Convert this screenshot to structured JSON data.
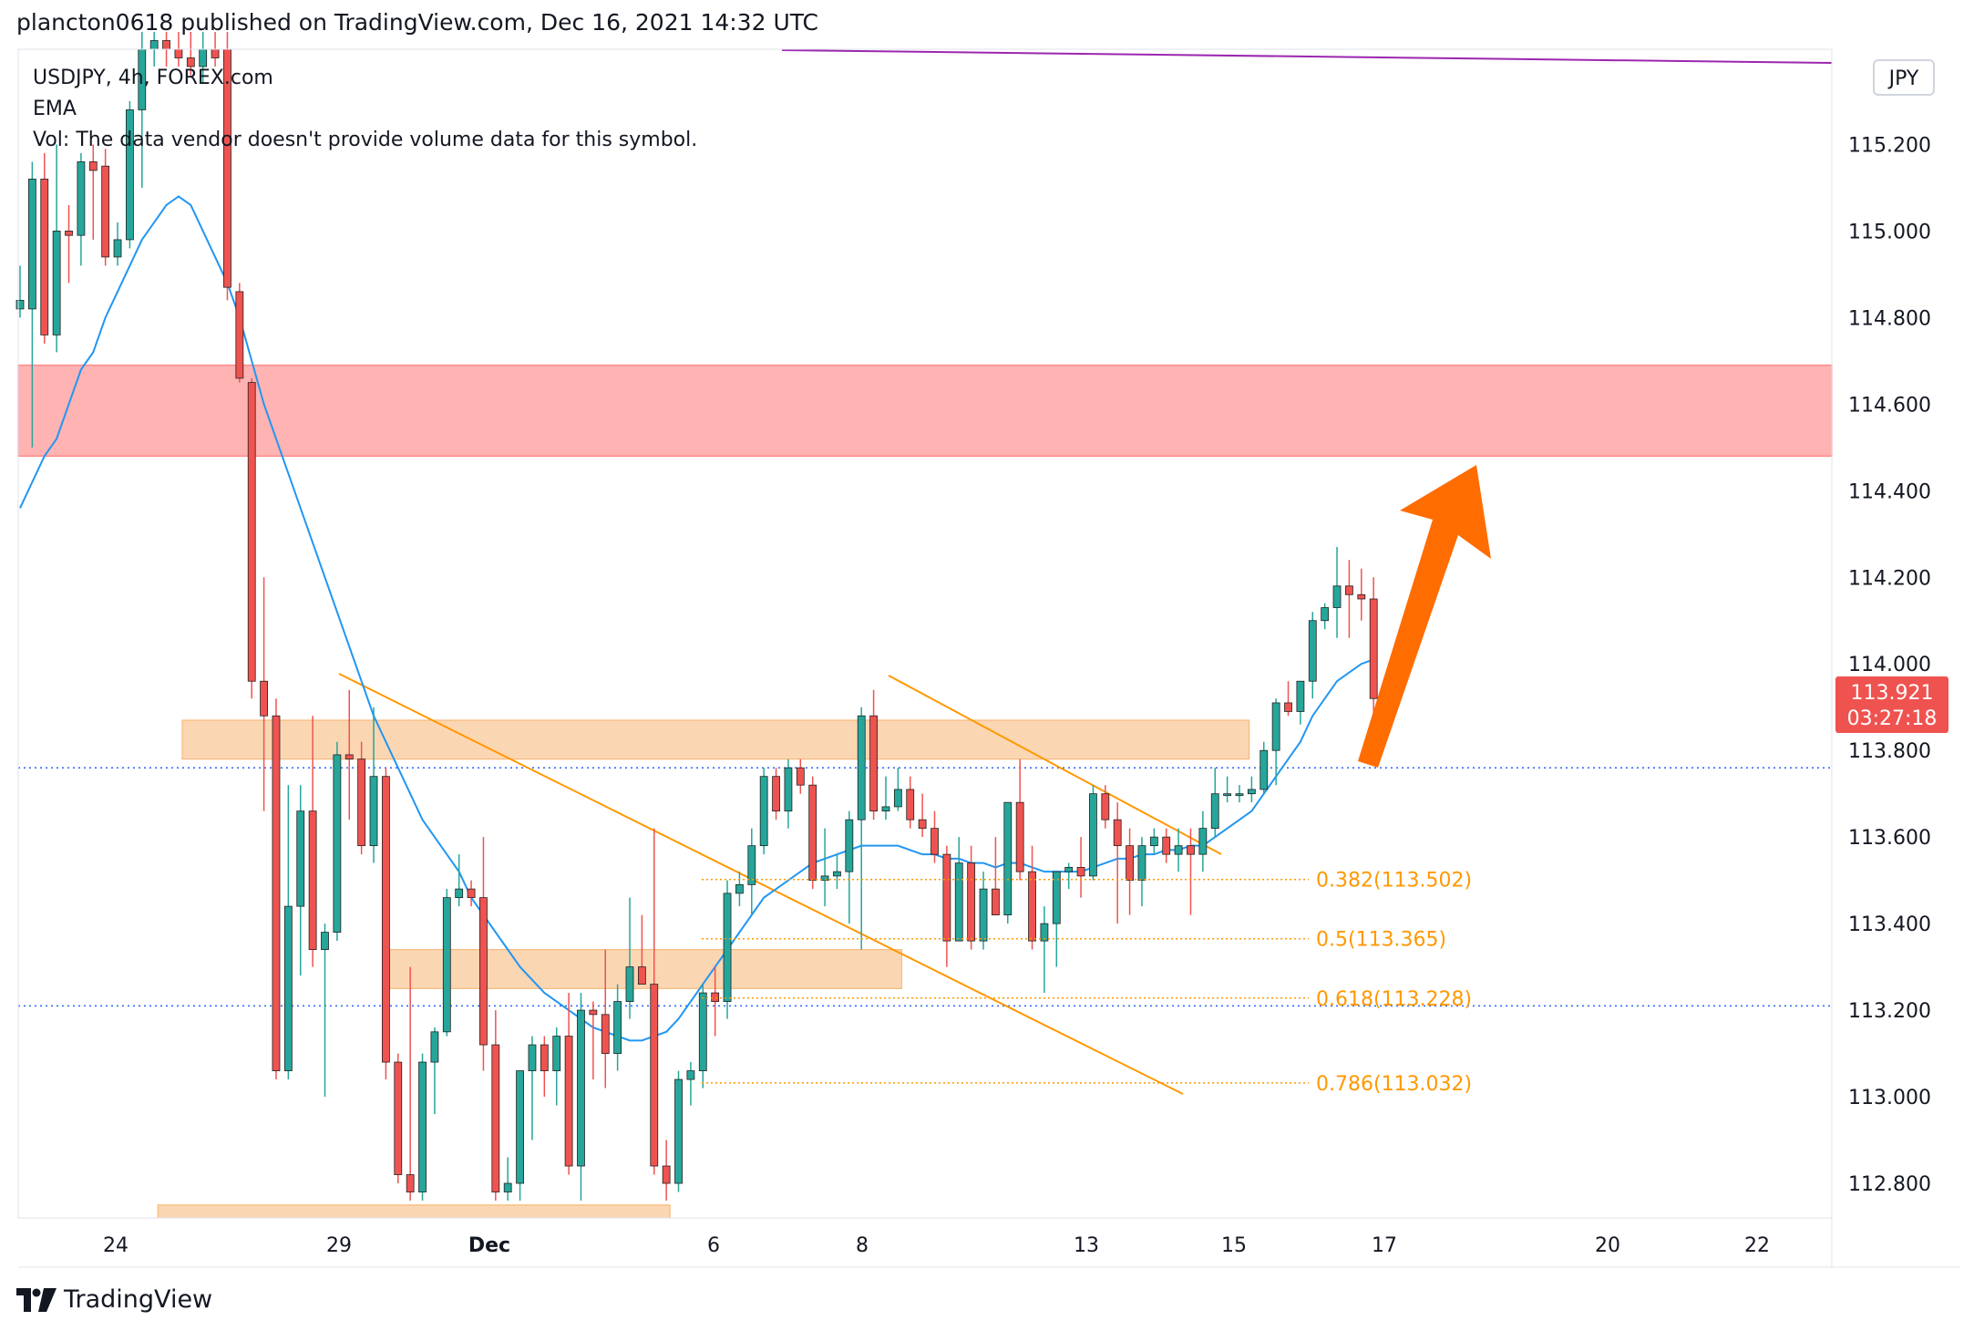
{
  "header": {
    "published_line": "plancton0618 published on TradingView.com, Dec 16, 2021 14:32 UTC"
  },
  "legend": {
    "symbol_line": "USDJPY, 4h, FOREX.com",
    "indicator": "EMA",
    "volume_note": "Vol: The data vendor doesn't provide volume data for this symbol."
  },
  "currency_badge": "JPY",
  "price_tag": {
    "price": "113.921",
    "countdown": "03:27:18"
  },
  "footer": {
    "brand": "TradingView"
  },
  "colors": {
    "bull": "#26a69a",
    "bear": "#ef5350",
    "ema": "#2196f3",
    "resistance_zone": "#ffb3b3",
    "support_zone": "#fbd6b2",
    "fib": "#ff9800",
    "trendline": "#ff9800",
    "arrow": "#ff6d00",
    "purple_line": "#9c27b0",
    "horizontal_dotted": "#2962ff"
  },
  "chart_data": {
    "type": "candlestick",
    "symbol": "USDJPY",
    "timeframe": "4h",
    "ylim": [
      112.72,
      115.42
    ],
    "y_ticks": [
      "115.200",
      "115.000",
      "114.800",
      "114.600",
      "114.400",
      "114.200",
      "114.000",
      "113.800",
      "113.600",
      "113.400",
      "113.200",
      "113.000",
      "112.800"
    ],
    "x_ticks": [
      "24",
      "29",
      "Dec",
      "6",
      "8",
      "13",
      "15",
      "17",
      "20",
      "22"
    ],
    "last_price": 113.921,
    "candles": [
      {
        "o": 114.82,
        "h": 114.92,
        "l": 114.8,
        "c": 114.84
      },
      {
        "o": 114.82,
        "h": 115.16,
        "l": 114.5,
        "c": 115.12
      },
      {
        "o": 115.12,
        "h": 115.18,
        "l": 114.74,
        "c": 114.76
      },
      {
        "o": 114.76,
        "h": 115.2,
        "l": 114.72,
        "c": 115.0
      },
      {
        "o": 115.0,
        "h": 115.06,
        "l": 114.88,
        "c": 114.99
      },
      {
        "o": 114.99,
        "h": 115.18,
        "l": 114.92,
        "c": 115.16
      },
      {
        "o": 115.16,
        "h": 115.2,
        "l": 114.98,
        "c": 115.14
      },
      {
        "o": 115.15,
        "h": 115.19,
        "l": 114.92,
        "c": 114.94
      },
      {
        "o": 114.94,
        "h": 115.02,
        "l": 114.92,
        "c": 114.98
      },
      {
        "o": 114.98,
        "h": 115.3,
        "l": 114.96,
        "c": 115.28
      },
      {
        "o": 115.28,
        "h": 115.46,
        "l": 115.1,
        "c": 115.42
      },
      {
        "o": 115.42,
        "h": 115.46,
        "l": 115.38,
        "c": 115.44
      },
      {
        "o": 115.44,
        "h": 115.46,
        "l": 115.38,
        "c": 115.42
      },
      {
        "o": 115.42,
        "h": 115.46,
        "l": 115.38,
        "c": 115.4
      },
      {
        "o": 115.4,
        "h": 115.46,
        "l": 115.36,
        "c": 115.38
      },
      {
        "o": 115.38,
        "h": 115.46,
        "l": 115.34,
        "c": 115.42
      },
      {
        "o": 115.42,
        "h": 115.46,
        "l": 115.38,
        "c": 115.4
      },
      {
        "o": 115.42,
        "h": 115.46,
        "l": 114.84,
        "c": 114.87
      },
      {
        "o": 114.86,
        "h": 114.88,
        "l": 114.65,
        "c": 114.66
      },
      {
        "o": 114.65,
        "h": 114.66,
        "l": 113.92,
        "c": 113.96
      },
      {
        "o": 113.96,
        "h": 114.2,
        "l": 113.66,
        "c": 113.88
      },
      {
        "o": 113.88,
        "h": 113.92,
        "l": 113.04,
        "c": 113.06
      },
      {
        "o": 113.06,
        "h": 113.72,
        "l": 113.04,
        "c": 113.44
      },
      {
        "o": 113.44,
        "h": 113.72,
        "l": 113.28,
        "c": 113.66
      },
      {
        "o": 113.66,
        "h": 113.88,
        "l": 113.3,
        "c": 113.34
      },
      {
        "o": 113.34,
        "h": 113.4,
        "l": 113.0,
        "c": 113.38
      },
      {
        "o": 113.38,
        "h": 113.82,
        "l": 113.36,
        "c": 113.79
      },
      {
        "o": 113.79,
        "h": 113.94,
        "l": 113.64,
        "c": 113.78
      },
      {
        "o": 113.78,
        "h": 113.82,
        "l": 113.56,
        "c": 113.58
      },
      {
        "o": 113.58,
        "h": 113.9,
        "l": 113.54,
        "c": 113.74
      },
      {
        "o": 113.74,
        "h": 113.76,
        "l": 113.04,
        "c": 113.08
      },
      {
        "o": 113.08,
        "h": 113.1,
        "l": 112.8,
        "c": 112.82
      },
      {
        "o": 112.82,
        "h": 113.3,
        "l": 112.76,
        "c": 112.78
      },
      {
        "o": 112.78,
        "h": 113.1,
        "l": 112.76,
        "c": 113.08
      },
      {
        "o": 113.08,
        "h": 113.16,
        "l": 112.96,
        "c": 113.15
      },
      {
        "o": 113.15,
        "h": 113.48,
        "l": 113.14,
        "c": 113.46
      },
      {
        "o": 113.46,
        "h": 113.56,
        "l": 113.44,
        "c": 113.48
      },
      {
        "o": 113.48,
        "h": 113.5,
        "l": 113.44,
        "c": 113.46
      },
      {
        "o": 113.46,
        "h": 113.6,
        "l": 113.06,
        "c": 113.12
      },
      {
        "o": 113.12,
        "h": 113.2,
        "l": 112.76,
        "c": 112.78
      },
      {
        "o": 112.78,
        "h": 112.86,
        "l": 112.76,
        "c": 112.8
      },
      {
        "o": 112.8,
        "h": 113.06,
        "l": 112.76,
        "c": 113.06
      },
      {
        "o": 113.06,
        "h": 113.14,
        "l": 112.9,
        "c": 113.12
      },
      {
        "o": 113.12,
        "h": 113.14,
        "l": 113.0,
        "c": 113.06
      },
      {
        "o": 113.06,
        "h": 113.16,
        "l": 112.98,
        "c": 113.14
      },
      {
        "o": 113.14,
        "h": 113.24,
        "l": 112.82,
        "c": 112.84
      },
      {
        "o": 112.84,
        "h": 113.24,
        "l": 112.76,
        "c": 113.2
      },
      {
        "o": 113.2,
        "h": 113.22,
        "l": 113.04,
        "c": 113.19
      },
      {
        "o": 113.19,
        "h": 113.34,
        "l": 113.02,
        "c": 113.1
      },
      {
        "o": 113.1,
        "h": 113.26,
        "l": 113.06,
        "c": 113.22
      },
      {
        "o": 113.22,
        "h": 113.46,
        "l": 113.18,
        "c": 113.3
      },
      {
        "o": 113.3,
        "h": 113.42,
        "l": 113.26,
        "c": 113.26
      },
      {
        "o": 113.26,
        "h": 113.62,
        "l": 112.82,
        "c": 112.84
      },
      {
        "o": 112.84,
        "h": 112.9,
        "l": 112.76,
        "c": 112.8
      },
      {
        "o": 112.8,
        "h": 113.06,
        "l": 112.78,
        "c": 113.04
      },
      {
        "o": 113.04,
        "h": 113.08,
        "l": 112.98,
        "c": 113.06
      },
      {
        "o": 113.06,
        "h": 113.26,
        "l": 113.02,
        "c": 113.24
      },
      {
        "o": 113.24,
        "h": 113.3,
        "l": 113.14,
        "c": 113.22
      },
      {
        "o": 113.22,
        "h": 113.5,
        "l": 113.18,
        "c": 113.47
      },
      {
        "o": 113.47,
        "h": 113.52,
        "l": 113.44,
        "c": 113.49
      },
      {
        "o": 113.49,
        "h": 113.62,
        "l": 113.42,
        "c": 113.58
      },
      {
        "o": 113.58,
        "h": 113.76,
        "l": 113.56,
        "c": 113.74
      },
      {
        "o": 113.74,
        "h": 113.76,
        "l": 113.64,
        "c": 113.66
      },
      {
        "o": 113.66,
        "h": 113.78,
        "l": 113.62,
        "c": 113.76
      },
      {
        "o": 113.76,
        "h": 113.78,
        "l": 113.7,
        "c": 113.72
      },
      {
        "o": 113.72,
        "h": 113.74,
        "l": 113.48,
        "c": 113.5
      },
      {
        "o": 113.5,
        "h": 113.62,
        "l": 113.44,
        "c": 113.51
      },
      {
        "o": 113.51,
        "h": 113.56,
        "l": 113.48,
        "c": 113.52
      },
      {
        "o": 113.52,
        "h": 113.66,
        "l": 113.4,
        "c": 113.64
      },
      {
        "o": 113.64,
        "h": 113.9,
        "l": 113.34,
        "c": 113.88
      },
      {
        "o": 113.88,
        "h": 113.94,
        "l": 113.64,
        "c": 113.66
      },
      {
        "o": 113.66,
        "h": 113.74,
        "l": 113.64,
        "c": 113.67
      },
      {
        "o": 113.67,
        "h": 113.76,
        "l": 113.66,
        "c": 113.71
      },
      {
        "o": 113.71,
        "h": 113.74,
        "l": 113.62,
        "c": 113.64
      },
      {
        "o": 113.64,
        "h": 113.7,
        "l": 113.6,
        "c": 113.62
      },
      {
        "o": 113.62,
        "h": 113.66,
        "l": 113.54,
        "c": 113.56
      },
      {
        "o": 113.56,
        "h": 113.58,
        "l": 113.3,
        "c": 113.36
      },
      {
        "o": 113.36,
        "h": 113.6,
        "l": 113.36,
        "c": 113.54
      },
      {
        "o": 113.54,
        "h": 113.58,
        "l": 113.34,
        "c": 113.36
      },
      {
        "o": 113.36,
        "h": 113.52,
        "l": 113.34,
        "c": 113.48
      },
      {
        "o": 113.48,
        "h": 113.6,
        "l": 113.44,
        "c": 113.42
      },
      {
        "o": 113.42,
        "h": 113.68,
        "l": 113.4,
        "c": 113.68
      },
      {
        "o": 113.68,
        "h": 113.78,
        "l": 113.5,
        "c": 113.52
      },
      {
        "o": 113.52,
        "h": 113.58,
        "l": 113.34,
        "c": 113.36
      },
      {
        "o": 113.36,
        "h": 113.44,
        "l": 113.24,
        "c": 113.4
      },
      {
        "o": 113.4,
        "h": 113.52,
        "l": 113.3,
        "c": 113.52
      },
      {
        "o": 113.52,
        "h": 113.54,
        "l": 113.48,
        "c": 113.53
      },
      {
        "o": 113.53,
        "h": 113.6,
        "l": 113.46,
        "c": 113.51
      },
      {
        "o": 113.51,
        "h": 113.72,
        "l": 113.5,
        "c": 113.7
      },
      {
        "o": 113.7,
        "h": 113.72,
        "l": 113.62,
        "c": 113.64
      },
      {
        "o": 113.64,
        "h": 113.68,
        "l": 113.4,
        "c": 113.58
      },
      {
        "o": 113.58,
        "h": 113.62,
        "l": 113.42,
        "c": 113.5
      },
      {
        "o": 113.5,
        "h": 113.6,
        "l": 113.44,
        "c": 113.58
      },
      {
        "o": 113.58,
        "h": 113.62,
        "l": 113.56,
        "c": 113.6
      },
      {
        "o": 113.6,
        "h": 113.62,
        "l": 113.54,
        "c": 113.56
      },
      {
        "o": 113.56,
        "h": 113.62,
        "l": 113.52,
        "c": 113.58
      },
      {
        "o": 113.58,
        "h": 113.62,
        "l": 113.42,
        "c": 113.56
      },
      {
        "o": 113.56,
        "h": 113.66,
        "l": 113.52,
        "c": 113.62
      },
      {
        "o": 113.62,
        "h": 113.76,
        "l": 113.6,
        "c": 113.7
      },
      {
        "o": 113.7,
        "h": 113.74,
        "l": 113.68,
        "c": 113.7
      },
      {
        "o": 113.7,
        "h": 113.72,
        "l": 113.68,
        "c": 113.7
      },
      {
        "o": 113.7,
        "h": 113.74,
        "l": 113.68,
        "c": 113.71
      },
      {
        "o": 113.71,
        "h": 113.82,
        "l": 113.7,
        "c": 113.8
      },
      {
        "o": 113.8,
        "h": 113.92,
        "l": 113.72,
        "c": 113.91
      },
      {
        "o": 113.91,
        "h": 113.96,
        "l": 113.88,
        "c": 113.89
      },
      {
        "o": 113.89,
        "h": 113.96,
        "l": 113.86,
        "c": 113.96
      },
      {
        "o": 113.96,
        "h": 114.12,
        "l": 113.92,
        "c": 114.1
      },
      {
        "o": 114.1,
        "h": 114.14,
        "l": 114.08,
        "c": 114.13
      },
      {
        "o": 114.13,
        "h": 114.27,
        "l": 114.06,
        "c": 114.18
      },
      {
        "o": 114.18,
        "h": 114.24,
        "l": 114.06,
        "c": 114.16
      },
      {
        "o": 114.16,
        "h": 114.22,
        "l": 114.1,
        "c": 114.15
      },
      {
        "o": 114.15,
        "h": 114.2,
        "l": 113.78,
        "c": 113.92
      }
    ],
    "ema": [
      114.36,
      114.42,
      114.48,
      114.52,
      114.6,
      114.68,
      114.72,
      114.8,
      114.86,
      114.92,
      114.98,
      115.02,
      115.06,
      115.08,
      115.06,
      115.0,
      114.94,
      114.88,
      114.8,
      114.7,
      114.6,
      114.52,
      114.44,
      114.36,
      114.28,
      114.2,
      114.12,
      114.04,
      113.96,
      113.88,
      113.82,
      113.76,
      113.7,
      113.64,
      113.6,
      113.56,
      113.52,
      113.46,
      113.42,
      113.38,
      113.34,
      113.3,
      113.27,
      113.24,
      113.22,
      113.2,
      113.18,
      113.16,
      113.15,
      113.14,
      113.13,
      113.13,
      113.14,
      113.15,
      113.18,
      113.22,
      113.26,
      113.3,
      113.34,
      113.38,
      113.42,
      113.46,
      113.48,
      113.5,
      113.52,
      113.54,
      113.55,
      113.56,
      113.57,
      113.58,
      113.58,
      113.58,
      113.58,
      113.57,
      113.56,
      113.56,
      113.55,
      113.55,
      113.54,
      113.54,
      113.53,
      113.54,
      113.54,
      113.53,
      113.52,
      113.52,
      113.52,
      113.52,
      113.53,
      113.54,
      113.55,
      113.55,
      113.56,
      113.56,
      113.57,
      113.57,
      113.58,
      113.58,
      113.6,
      113.62,
      113.64,
      113.66,
      113.7,
      113.74,
      113.78,
      113.82,
      113.88,
      113.92,
      113.96,
      113.98,
      114.0,
      114.01
    ],
    "resistance_zone": [
      114.48,
      114.69
    ],
    "support_zones": [
      [
        113.78,
        113.87
      ],
      [
        113.25,
        113.34
      ],
      [
        112.72,
        112.75
      ]
    ],
    "fib_levels": [
      {
        "ratio": "0.382",
        "price": "113.502",
        "label": "0.382(113.502)"
      },
      {
        "ratio": "0.5",
        "price": "113.365",
        "label": "0.5(113.365)"
      },
      {
        "ratio": "0.618",
        "price": "113.228",
        "label": "0.618(113.228)"
      },
      {
        "ratio": "0.786",
        "price": "113.032",
        "label": "0.786(113.032)"
      }
    ],
    "horizontal_lines": [
      113.76,
      113.21
    ],
    "grid": false,
    "annotations": [
      "descending channel",
      "breakout arrow up"
    ]
  }
}
